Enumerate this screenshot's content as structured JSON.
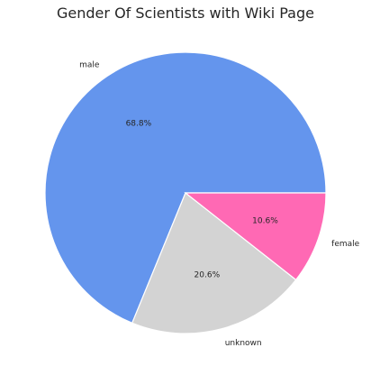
{
  "chart_data": {
    "type": "pie",
    "title": "Gender Of Scientists with Wiki Page",
    "slices": [
      {
        "label": "male",
        "value": 68.8,
        "pct_label": "68.8%",
        "color": "#6495ED"
      },
      {
        "label": "unknown",
        "value": 20.6,
        "pct_label": "20.6%",
        "color": "#D3D3D3"
      },
      {
        "label": "female",
        "value": 10.6,
        "pct_label": "10.6%",
        "color": "#FF69B4"
      }
    ],
    "legend": "none"
  }
}
